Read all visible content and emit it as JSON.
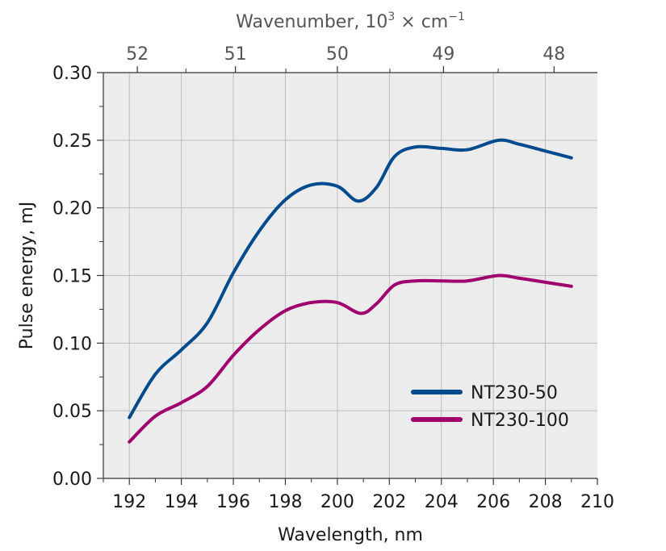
{
  "chart_data": {
    "type": "line",
    "xlabel": "Wavelength, nm",
    "ylabel": "Pulse energy, mJ",
    "top_axis": {
      "label_main": "Wavenumber, 10",
      "label_sup1": "3",
      "label_mid": " × cm",
      "label_sup2": "−1",
      "ticks": [
        52,
        51,
        50,
        49,
        48
      ],
      "tick_labels": [
        "52",
        "51",
        "50",
        "49",
        "48"
      ]
    },
    "xlim": [
      191,
      210
    ],
    "ylim": [
      0,
      0.3
    ],
    "x_ticks": [
      192,
      194,
      196,
      198,
      200,
      202,
      204,
      206,
      208,
      210
    ],
    "x_tick_labels": [
      "192",
      "194",
      "196",
      "198",
      "200",
      "202",
      "204",
      "206",
      "208",
      "210"
    ],
    "y_ticks": [
      0,
      0.05,
      0.1,
      0.15,
      0.2,
      0.25,
      0.3
    ],
    "y_tick_labels": [
      "0.00",
      "0.05",
      "0.10",
      "0.15",
      "0.20",
      "0.25",
      "0.30"
    ],
    "grid": true,
    "legend_position": "bottom-right",
    "series": [
      {
        "name": "NT230-50",
        "color": "#004b8d",
        "points": [
          [
            192,
            0.045
          ],
          [
            193,
            0.077
          ],
          [
            194,
            0.095
          ],
          [
            195,
            0.115
          ],
          [
            196,
            0.152
          ],
          [
            197,
            0.183
          ],
          [
            198,
            0.206
          ],
          [
            199,
            0.217
          ],
          [
            200,
            0.216
          ],
          [
            200.8,
            0.205
          ],
          [
            201.5,
            0.215
          ],
          [
            202.2,
            0.238
          ],
          [
            203,
            0.245
          ],
          [
            204,
            0.244
          ],
          [
            205,
            0.243
          ],
          [
            206.2,
            0.25
          ],
          [
            207,
            0.247
          ],
          [
            208,
            0.242
          ],
          [
            209,
            0.237
          ]
        ]
      },
      {
        "name": "NT230-100",
        "color": "#a0006e",
        "points": [
          [
            192,
            0.027
          ],
          [
            193,
            0.046
          ],
          [
            194,
            0.056
          ],
          [
            195,
            0.068
          ],
          [
            196,
            0.091
          ],
          [
            197,
            0.11
          ],
          [
            198,
            0.124
          ],
          [
            199,
            0.13
          ],
          [
            200,
            0.13
          ],
          [
            200.9,
            0.122
          ],
          [
            201.5,
            0.129
          ],
          [
            202.2,
            0.143
          ],
          [
            203,
            0.146
          ],
          [
            204,
            0.146
          ],
          [
            205,
            0.146
          ],
          [
            206.2,
            0.15
          ],
          [
            207,
            0.148
          ],
          [
            208,
            0.145
          ],
          [
            209,
            0.142
          ]
        ]
      }
    ]
  }
}
